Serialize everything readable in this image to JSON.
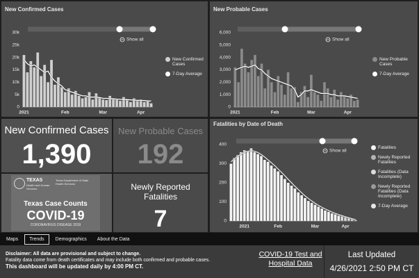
{
  "chart_data": [
    {
      "type": "bar",
      "title": "New Confirmed Cases",
      "zoom_label": "Show all",
      "categories": [
        "2021",
        null,
        null,
        null,
        null,
        null,
        null,
        null,
        null,
        null,
        null,
        null,
        "Feb",
        null,
        null,
        null,
        null,
        null,
        null,
        null,
        null,
        null,
        null,
        "Mar",
        null,
        null,
        null,
        null,
        null,
        null,
        null,
        null,
        null,
        null,
        "Apr",
        null,
        null,
        null
      ],
      "series": [
        {
          "name": "New Confirmed Cases",
          "type": "bar",
          "color": "#d0d0d0",
          "values": [
            21000,
            14000,
            18500,
            16000,
            22000,
            12500,
            17000,
            10000,
            19000,
            9000,
            12000,
            8000,
            6000,
            7500,
            5000,
            6500,
            4500,
            3500,
            4000,
            6000,
            3000,
            5500,
            4000,
            3000,
            2800,
            4500,
            3500,
            3000,
            2500,
            4000,
            3000,
            2000,
            3500,
            2500,
            3000,
            2000,
            2500,
            1500
          ]
        },
        {
          "name": "7-Day Average",
          "type": "line",
          "color": "#ffffff",
          "values": [
            19000,
            17500,
            16500,
            17000,
            16000,
            15000,
            14000,
            14500,
            12000,
            10500,
            9500,
            8500,
            7000,
            6500,
            6000,
            5500,
            5000,
            4500,
            4500,
            4000,
            4000,
            4000,
            3800,
            3500,
            3500,
            3400,
            3300,
            3200,
            3100,
            3000,
            3000,
            2900,
            2800,
            2700,
            2700,
            2600,
            2500,
            2400
          ]
        }
      ],
      "ylim": [
        0,
        30000
      ],
      "yticks": [
        0,
        {
          "value": 5000,
          "label": "5k"
        },
        {
          "value": 10000,
          "label": "10k"
        },
        {
          "value": 15000,
          "label": "15k"
        },
        {
          "value": 20000,
          "label": "20k"
        },
        {
          "value": 25000,
          "label": "25k"
        },
        {
          "value": 30000,
          "label": "30k"
        }
      ],
      "grid": false,
      "stacked": true
    },
    {
      "type": "bar",
      "title": "New Probable Cases",
      "zoom_label": "Show all",
      "categories": [
        "2021",
        null,
        null,
        null,
        null,
        null,
        null,
        null,
        null,
        null,
        null,
        null,
        "Feb",
        null,
        null,
        null,
        null,
        null,
        null,
        null,
        null,
        null,
        null,
        "Mar",
        null,
        null,
        null,
        null,
        null,
        null,
        null,
        null,
        null,
        null,
        "Apr",
        null,
        null,
        null
      ],
      "series": [
        {
          "name": "New Probable Cases",
          "type": "bar",
          "color": "#8c8c8c",
          "values": [
            3200,
            2000,
            4700,
            3500,
            2800,
            3800,
            4200,
            2500,
            3500,
            1500,
            3000,
            2000,
            1200,
            2500,
            1800,
            1000,
            2800,
            1500,
            1600,
            400,
            1200,
            1700,
            800,
            2600,
            1200,
            1000,
            500,
            2000,
            1500,
            800,
            1400,
            600,
            1200,
            900,
            700,
            1000,
            500,
            600
          ]
        },
        {
          "name": "7-Day Average",
          "type": "line",
          "color": "#ffffff",
          "values": [
            3000,
            3100,
            3200,
            3300,
            3200,
            3300,
            3400,
            3100,
            3000,
            2700,
            2500,
            2300,
            2200,
            2100,
            2000,
            1900,
            1800,
            1700,
            1400,
            800,
            1000,
            1300,
            1300,
            1400,
            1300,
            1200,
            1100,
            1100,
            1100,
            1000,
            1000,
            900,
            900,
            900,
            850,
            800,
            750,
            700
          ]
        }
      ],
      "ylim": [
        0,
        6000
      ],
      "yticks": [
        0,
        {
          "value": 1000,
          "label": "1,000"
        },
        {
          "value": 2000,
          "label": "2,000"
        },
        {
          "value": 3000,
          "label": "3,000"
        },
        {
          "value": 4000,
          "label": "4,000"
        },
        {
          "value": 5000,
          "label": "5,000"
        },
        {
          "value": 6000,
          "label": "6,000"
        }
      ],
      "grid": false,
      "stacked": true
    },
    {
      "type": "bar",
      "title": "Fatalities by Date of Death",
      "zoom_label": "Show all",
      "categories": [
        null,
        null,
        null,
        null,
        "2021",
        null,
        null,
        null,
        null,
        null,
        null,
        null,
        null,
        null,
        "Feb",
        null,
        null,
        null,
        null,
        null,
        null,
        null,
        null,
        null,
        null,
        "Mar",
        null,
        null,
        null,
        null,
        null,
        null,
        null,
        null,
        "Apr",
        null,
        null,
        null
      ],
      "series": [
        {
          "name": "Fatalities",
          "type": "bar",
          "color": "#f4f4f4",
          "values": [
            300,
            330,
            345,
            360,
            370,
            365,
            380,
            360,
            350,
            340,
            320,
            310,
            290,
            275,
            260,
            240,
            220,
            200,
            185,
            170,
            150,
            135,
            120,
            105,
            95,
            85,
            75,
            65,
            55,
            48,
            40,
            35,
            28,
            null,
            null,
            null,
            null,
            null
          ]
        },
        {
          "name": "Newly Reported Fatalities",
          "type": "bar",
          "color": "#b5b5b5",
          "values": [
            null,
            null,
            null,
            null,
            null,
            null,
            null,
            null,
            null,
            null,
            null,
            null,
            null,
            null,
            null,
            null,
            null,
            null,
            null,
            null,
            null,
            null,
            null,
            null,
            null,
            null,
            null,
            null,
            null,
            null,
            null,
            null,
            null,
            3,
            2,
            3,
            2,
            1
          ]
        },
        {
          "name": "Fatalities (Data Incomplete)",
          "type": "bar",
          "color": "#dcdcdc",
          "values": [
            null,
            null,
            null,
            null,
            null,
            null,
            null,
            null,
            null,
            null,
            null,
            null,
            null,
            null,
            null,
            null,
            null,
            null,
            null,
            null,
            null,
            null,
            null,
            null,
            null,
            null,
            null,
            null,
            null,
            null,
            null,
            null,
            null,
            22,
            18,
            14,
            9,
            4
          ]
        },
        {
          "name": "Newly Reported Fatalities (Data Incomplete)",
          "type": "bar",
          "color": "#9a9a9a",
          "values": [
            null,
            null,
            null,
            null,
            null,
            null,
            null,
            null,
            null,
            null,
            null,
            null,
            null,
            null,
            null,
            null,
            null,
            null,
            null,
            null,
            null,
            null,
            null,
            null,
            null,
            null,
            null,
            null,
            null,
            null,
            null,
            null,
            null,
            null,
            null,
            1,
            2,
            1
          ]
        },
        {
          "name": "7-Day Average",
          "type": "line",
          "color": "#e6e6e6",
          "values": [
            310,
            325,
            340,
            350,
            360,
            365,
            368,
            365,
            358,
            348,
            335,
            320,
            305,
            290,
            272,
            255,
            237,
            218,
            200,
            182,
            165,
            148,
            132,
            118,
            105,
            93,
            82,
            72,
            63,
            55,
            47,
            40,
            34,
            28,
            22,
            17,
            12,
            8
          ]
        }
      ],
      "ylim": [
        0,
        400
      ],
      "yticks": [
        0,
        100,
        200,
        300,
        400
      ],
      "grid": false,
      "stacked": true
    }
  ],
  "kpis": [
    {
      "label": "New Confirmed Cases",
      "value": "1,390"
    },
    {
      "label": "New Probable Cases",
      "value": "192"
    },
    {
      "label": "Newly Reported Fatalities",
      "value": "7"
    }
  ],
  "image": {
    "agency": "TEXAS",
    "agency_sub": "Health and Human Services",
    "department": "Texas Department of State Health Services",
    "heading": "Texas Case Counts",
    "title": "COVID-19",
    "subtitle": "CORONAVIRUS DISEASE 2019"
  },
  "tabs": [
    "Maps",
    "Trends",
    "Demographics",
    "About the Data"
  ],
  "footer": {
    "disclaimer": [
      "Disclaimer: All data are provisional and subject to change.",
      "Fatality data come from death certificates and may include both confirmed and probable cases.",
      "This dashboard will be updated daily by 4:00 PM CT."
    ],
    "link": "COVID-19 Test and Hospital Data",
    "updated_label": "Last Updated",
    "updated_value": "4/26/2021 2:50 PM CT"
  }
}
